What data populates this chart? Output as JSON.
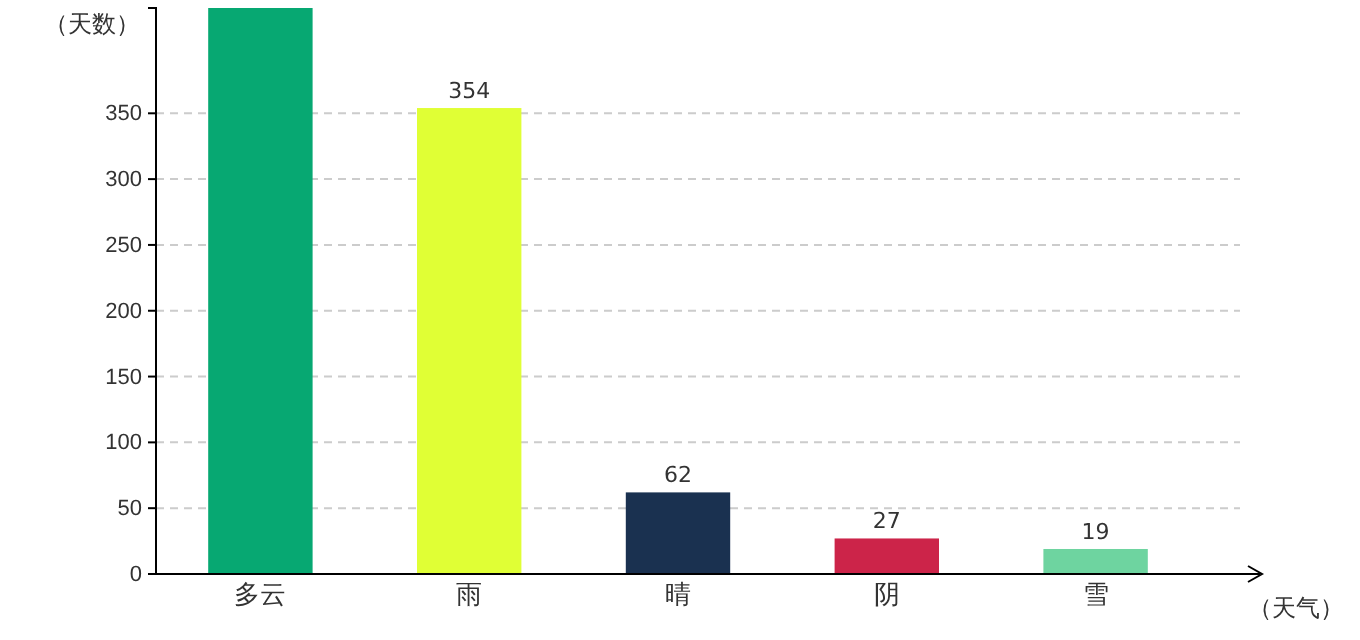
{
  "chart_data": {
    "type": "bar",
    "xlabel": "（天气）",
    "ylabel": "（天数）",
    "categories": [
      "多云",
      "雨",
      "晴",
      "阴",
      "雪"
    ],
    "values": [
      430,
      354,
      62,
      27,
      19
    ],
    "value_labels": [
      null,
      "354",
      "62",
      "27",
      "19"
    ],
    "colors": [
      "#07a872",
      "#e0ff35",
      "#1a3150",
      "#cc2449",
      "#6ed4a0"
    ],
    "ylim": [
      0,
      430
    ],
    "yticks": [
      0,
      50,
      100,
      150,
      200,
      250,
      300,
      350
    ],
    "grid": "y"
  }
}
